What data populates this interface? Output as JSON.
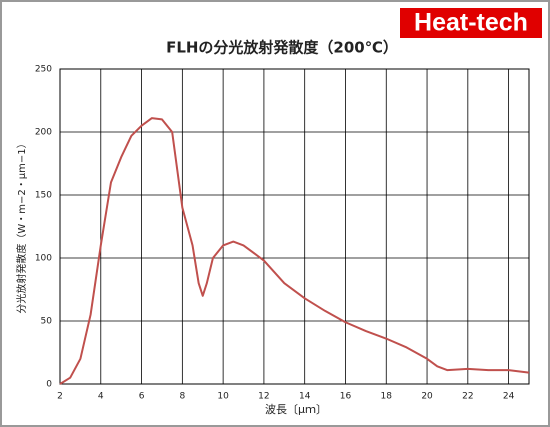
{
  "chart_data": {
    "type": "line",
    "logo": "Heat-tech",
    "title": "FLHの分光放射発散度（200℃）",
    "x_label": "波長〔μｍ〕",
    "y_label": "分光放射発散度（W・m−2・μm−1）",
    "x": [
      2,
      2.5,
      3,
      3.5,
      4,
      4.5,
      5,
      5.5,
      6,
      6.5,
      7,
      7.5,
      8,
      8.5,
      8.8,
      9,
      9.2,
      9.5,
      10,
      10.5,
      11,
      12,
      13,
      14,
      15,
      16,
      17,
      18,
      19,
      20,
      20.5,
      21,
      22,
      23,
      24,
      25
    ],
    "series": [
      {
        "color": "#c0504d",
        "values": [
          0,
          5,
          20,
          55,
          110,
          160,
          180,
          197,
          205,
          211,
          210,
          200,
          140,
          110,
          80,
          70,
          80,
          100,
          110,
          113,
          110,
          98,
          80,
          68,
          58,
          49,
          42,
          36,
          29,
          20,
          14,
          11,
          12,
          11,
          11,
          9
        ]
      }
    ],
    "xlim": [
      2,
      25
    ],
    "xticks": [
      2,
      4,
      6,
      8,
      10,
      12,
      14,
      16,
      18,
      20,
      22,
      24
    ],
    "ylim": [
      0,
      250
    ],
    "yticks": [
      0,
      50,
      100,
      150,
      200,
      250
    ],
    "grid": true
  }
}
